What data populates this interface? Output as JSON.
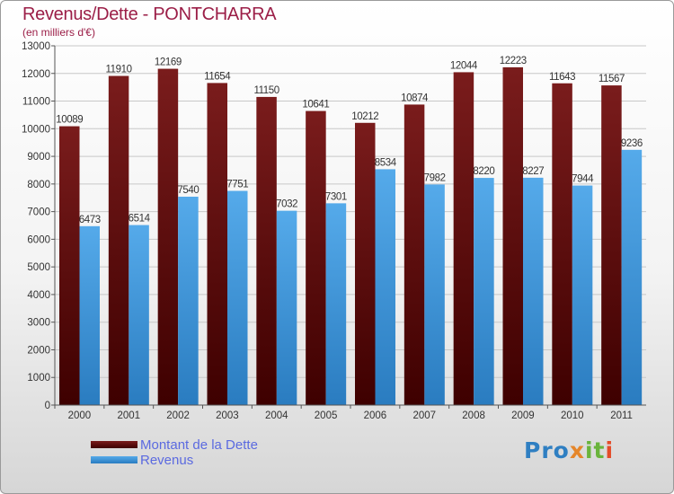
{
  "chart_data": {
    "type": "bar",
    "title": "Revenus/Dette - PONTCHARRA",
    "subtitle": "(en milliers d'€)",
    "categories": [
      "2000",
      "2001",
      "2002",
      "2003",
      "2004",
      "2005",
      "2006",
      "2007",
      "2008",
      "2009",
      "2010",
      "2011"
    ],
    "series": [
      {
        "name": "Montant de la Dette",
        "color": "#6e1010",
        "values": [
          10089,
          11910,
          12169,
          11654,
          11150,
          10641,
          10212,
          10874,
          12044,
          12223,
          11643,
          11567
        ]
      },
      {
        "name": "Revenus",
        "color": "#4fa3e6",
        "values": [
          6473,
          6514,
          7540,
          7751,
          7032,
          7301,
          8534,
          7982,
          8220,
          8227,
          7944,
          9236
        ]
      }
    ],
    "ylim": [
      0,
      13000
    ],
    "yticks": [
      0,
      1000,
      2000,
      3000,
      4000,
      5000,
      6000,
      7000,
      8000,
      9000,
      10000,
      11000,
      12000,
      13000
    ],
    "grid": true,
    "legend_position": "bottom-left"
  },
  "logo": {
    "text": "Proxiti",
    "p1": "Pro",
    "p2": "x",
    "p3": "it",
    "p4": "i"
  }
}
